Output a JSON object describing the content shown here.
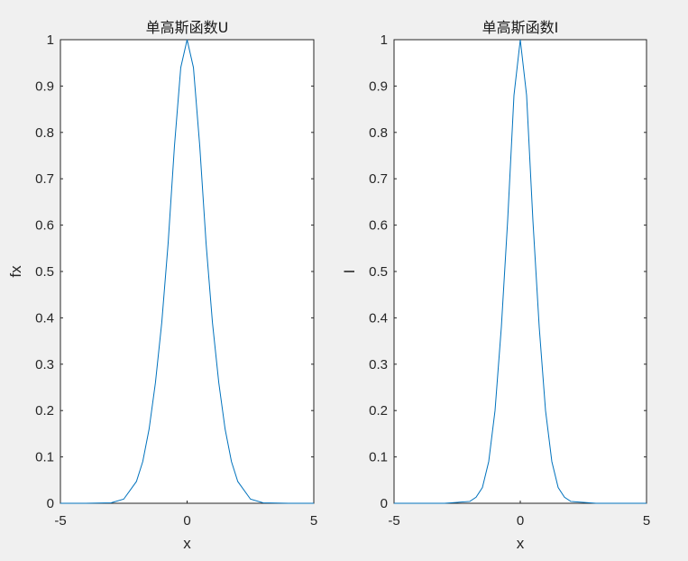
{
  "chart_data": [
    {
      "type": "line",
      "title": "单高斯函数U",
      "xlabel": "x",
      "ylabel": "fx",
      "xlim": [
        -5,
        5
      ],
      "ylim": [
        0,
        1
      ],
      "xticks": [
        "-5",
        "0",
        "5"
      ],
      "yticks": [
        "0",
        "0.1",
        "0.2",
        "0.3",
        "0.4",
        "0.5",
        "0.6",
        "0.7",
        "0.8",
        "0.9",
        "1"
      ],
      "grid": false,
      "legend": false,
      "series": [
        {
          "color": "#0072bd",
          "x": [
            -5,
            -4,
            -3,
            -2.5,
            -2,
            -1.75,
            -1.5,
            -1.25,
            -1,
            -0.75,
            -0.5,
            -0.25,
            0,
            0.25,
            0.5,
            0.75,
            1,
            1.25,
            1.5,
            1.75,
            2,
            2.5,
            3,
            4,
            5
          ],
          "y": [
            0,
            0,
            0.001,
            0.009,
            0.047,
            0.09,
            0.16,
            0.26,
            0.39,
            0.56,
            0.77,
            0.94,
            1,
            0.94,
            0.77,
            0.56,
            0.39,
            0.26,
            0.16,
            0.09,
            0.047,
            0.009,
            0.001,
            0,
            0
          ]
        }
      ]
    },
    {
      "type": "line",
      "title": "单高斯函数I",
      "xlabel": "x",
      "ylabel": "I",
      "xlim": [
        -5,
        5
      ],
      "ylim": [
        0,
        1
      ],
      "xticks": [
        "-5",
        "0",
        "5"
      ],
      "yticks": [
        "0",
        "0.1",
        "0.2",
        "0.3",
        "0.4",
        "0.5",
        "0.6",
        "0.7",
        "0.8",
        "0.9",
        "1"
      ],
      "grid": false,
      "legend": false,
      "series": [
        {
          "color": "#0072bd",
          "x": [
            -5,
            -3,
            -2,
            -1.75,
            -1.5,
            -1.25,
            -1,
            -0.75,
            -0.5,
            -0.25,
            0,
            0.25,
            0.5,
            0.75,
            1,
            1.25,
            1.5,
            1.75,
            2,
            3,
            5
          ],
          "y": [
            0,
            0,
            0.004,
            0.013,
            0.034,
            0.09,
            0.2,
            0.38,
            0.61,
            0.88,
            1,
            0.88,
            0.61,
            0.38,
            0.2,
            0.09,
            0.034,
            0.013,
            0.004,
            0,
            0
          ]
        }
      ]
    }
  ]
}
